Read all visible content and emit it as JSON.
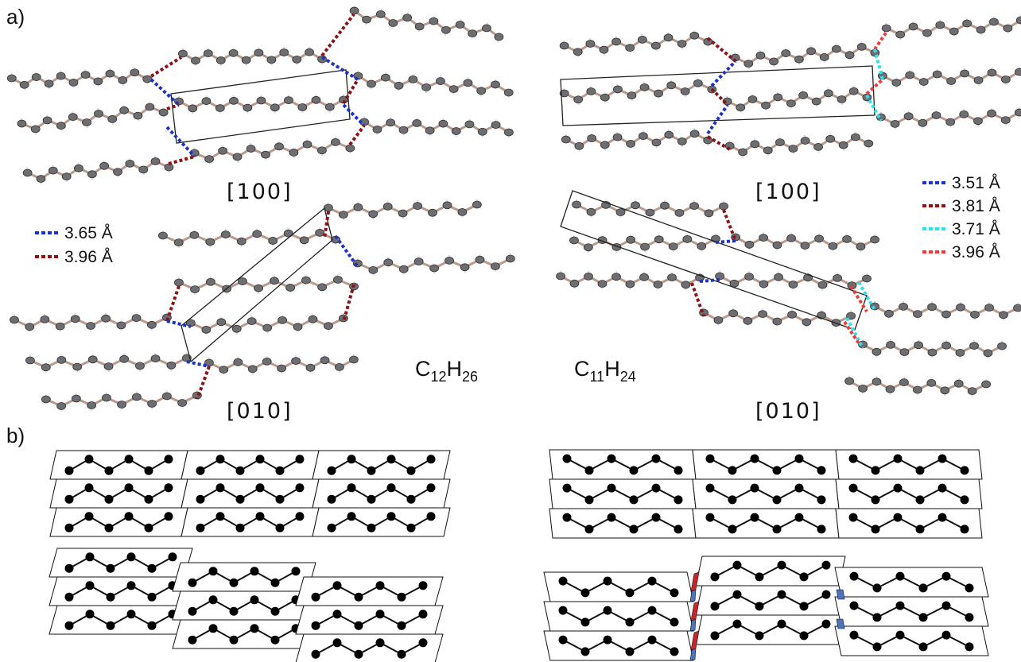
{
  "panel_a": {
    "label": "a)",
    "left": {
      "projection_top": "[100]",
      "projection_bottom": "[010]",
      "formula": {
        "element1": "C",
        "count1": "12",
        "element2": "H",
        "count2": "26"
      },
      "legend": [
        {
          "label": "3.65 Å",
          "color": "#1c33c4"
        },
        {
          "label": "3.96 Å",
          "color": "#8a1414"
        }
      ]
    },
    "right": {
      "projection_top": "[100]",
      "projection_bottom": "[010]",
      "formula": {
        "element1": "C",
        "count1": "11",
        "element2": "H",
        "count2": "24"
      },
      "legend": [
        {
          "label": "3.51 Å",
          "color": "#1c33c4"
        },
        {
          "label": "3.81 Å",
          "color": "#8a1414"
        },
        {
          "label": "3.71 Å",
          "color": "#2ee0ee"
        },
        {
          "label": "3.96 Å",
          "color": "#f03a3a"
        }
      ]
    }
  },
  "panel_b": {
    "label": "b)"
  }
}
